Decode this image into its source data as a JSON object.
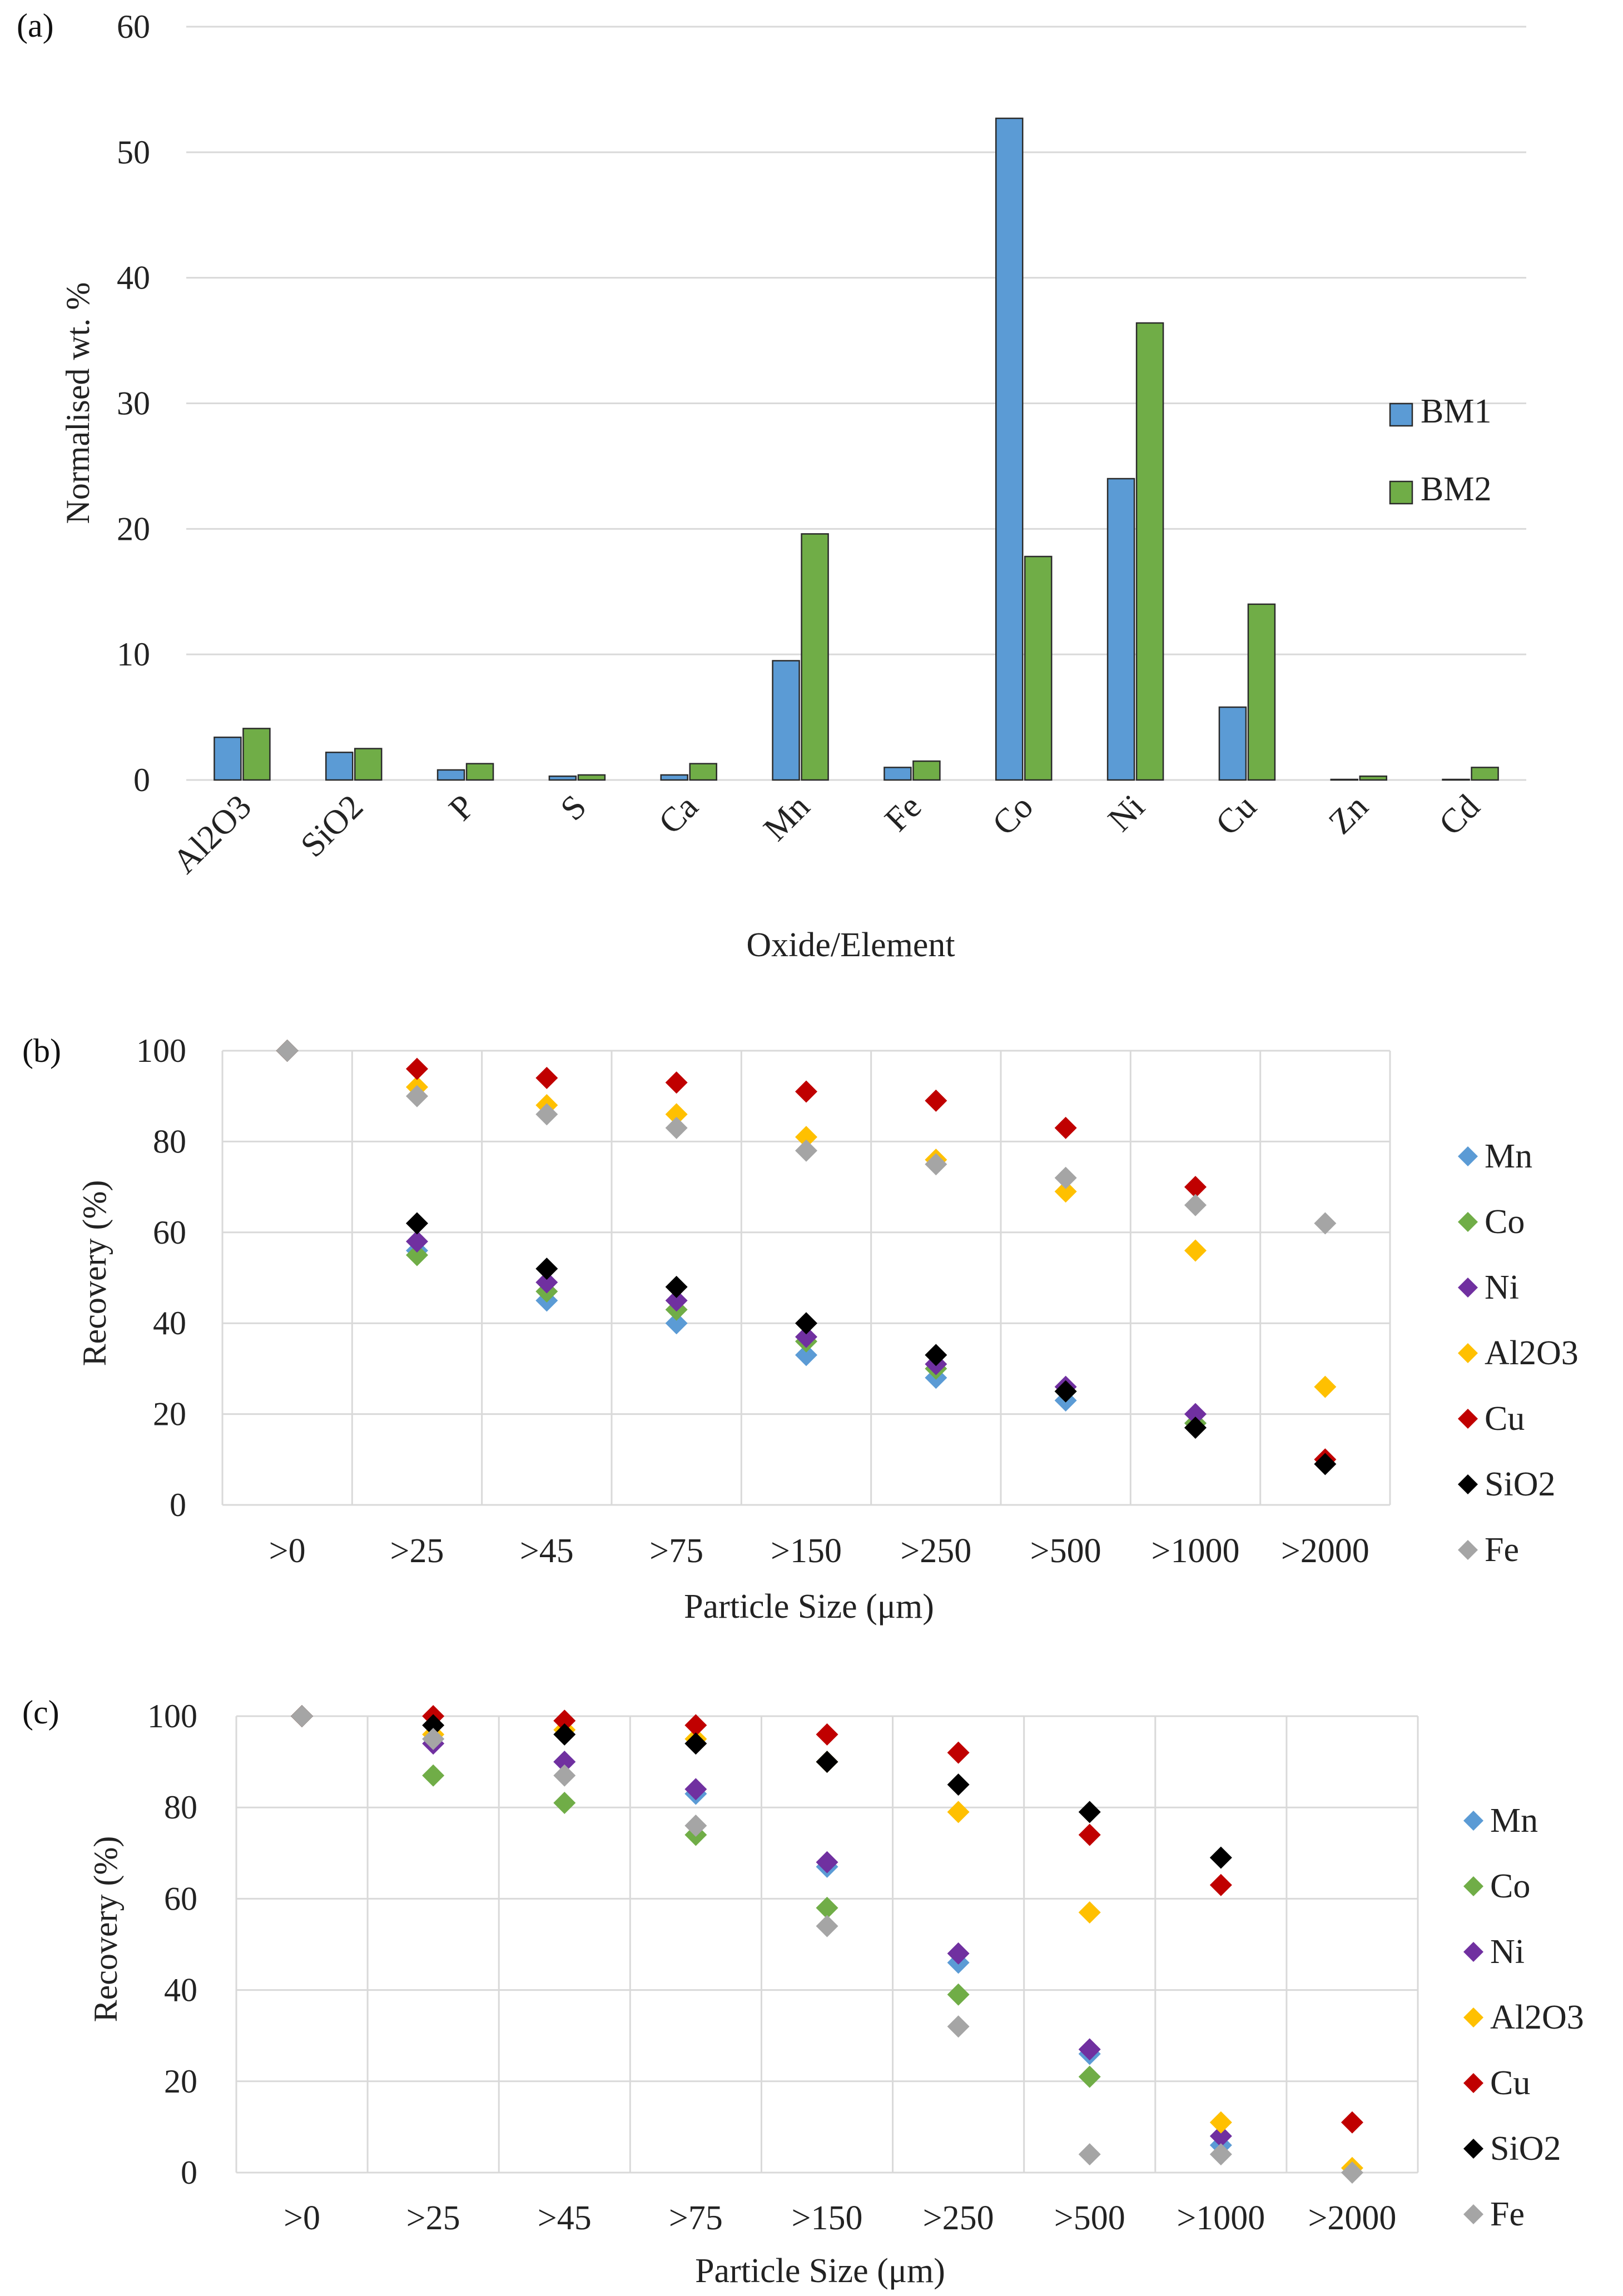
{
  "colors": {
    "BM1": "#5b9bd5",
    "BM2": "#70ad47",
    "Mn": "#5b9bd5",
    "Co": "#70ad47",
    "Ni": "#7030a0",
    "Al2O3": "#ffc000",
    "Cu": "#c00000",
    "SiO2": "#000000",
    "Fe": "#a5a5a5",
    "grid": "#d9d9d9"
  },
  "chart_data": [
    {
      "panel": "(a)",
      "type": "bar",
      "categories": [
        "Al2O3",
        "SiO2",
        "P",
        "S",
        "Ca",
        "Mn",
        "Fe",
        "Co",
        "Ni",
        "Cu",
        "Zn",
        "Cd"
      ],
      "series": [
        {
          "name": "BM1",
          "values": [
            3.4,
            2.2,
            0.8,
            0.3,
            0.4,
            9.5,
            1.0,
            52.7,
            24.0,
            5.8,
            0.0,
            0.0
          ]
        },
        {
          "name": "BM2",
          "values": [
            4.1,
            2.5,
            1.3,
            0.4,
            1.3,
            19.6,
            1.5,
            17.8,
            36.4,
            14.0,
            0.3,
            1.0
          ]
        }
      ],
      "ylim": [
        0,
        60
      ],
      "yticks": [
        0,
        10,
        20,
        30,
        40,
        50,
        60
      ],
      "xlabel": "Oxide/Element",
      "ylabel": "Normalised wt. %",
      "legend": "right"
    },
    {
      "panel": "(b)",
      "type": "scatter",
      "categories": [
        ">0",
        ">25",
        ">45",
        ">75",
        ">150",
        ">250",
        ">500",
        ">1000",
        ">2000"
      ],
      "series": [
        {
          "name": "Mn",
          "values": [
            100,
            56,
            45,
            40,
            33,
            28,
            23,
            18,
            null
          ]
        },
        {
          "name": "Co",
          "values": [
            100,
            55,
            47,
            43,
            36,
            30,
            25,
            18,
            null
          ]
        },
        {
          "name": "Ni",
          "values": [
            100,
            58,
            49,
            45,
            37,
            31,
            26,
            20,
            null
          ]
        },
        {
          "name": "Al2O3",
          "values": [
            100,
            92,
            88,
            86,
            81,
            76,
            69,
            56,
            26
          ]
        },
        {
          "name": "Cu",
          "values": [
            100,
            96,
            94,
            93,
            91,
            89,
            83,
            70,
            10
          ]
        },
        {
          "name": "SiO2",
          "values": [
            100,
            62,
            52,
            48,
            40,
            33,
            25,
            17,
            9
          ]
        },
        {
          "name": "Fe",
          "values": [
            100,
            90,
            86,
            83,
            78,
            75,
            72,
            66,
            62
          ]
        }
      ],
      "ylim": [
        0,
        100
      ],
      "yticks": [
        0,
        20,
        40,
        60,
        80,
        100
      ],
      "xlabel": "Particle Size (μm)",
      "ylabel": "Recovery (%)",
      "legend": "right"
    },
    {
      "panel": "(c)",
      "type": "scatter",
      "categories": [
        ">0",
        ">25",
        ">45",
        ">75",
        ">150",
        ">250",
        ">500",
        ">1000",
        ">2000"
      ],
      "series": [
        {
          "name": "Mn",
          "values": [
            100,
            95,
            90,
            83,
            67,
            46,
            26,
            6,
            null
          ]
        },
        {
          "name": "Co",
          "values": [
            100,
            87,
            81,
            74,
            58,
            39,
            21,
            null,
            null
          ]
        },
        {
          "name": "Ni",
          "values": [
            100,
            94,
            90,
            84,
            68,
            48,
            27,
            8,
            null
          ]
        },
        {
          "name": "Al2O3",
          "values": [
            100,
            96,
            97,
            95,
            90,
            79,
            57,
            11,
            1
          ]
        },
        {
          "name": "Cu",
          "values": [
            100,
            100,
            99,
            98,
            96,
            92,
            74,
            63,
            11
          ]
        },
        {
          "name": "SiO2",
          "values": [
            100,
            98,
            96,
            94,
            90,
            85,
            79,
            69,
            null
          ]
        },
        {
          "name": "Fe",
          "values": [
            100,
            95,
            87,
            76,
            54,
            32,
            4,
            4,
            0
          ]
        }
      ],
      "ylim": [
        0,
        100
      ],
      "yticks": [
        0,
        20,
        40,
        60,
        80,
        100
      ],
      "xlabel": "Particle Size (μm)",
      "ylabel": "Recovery (%)",
      "legend": "right"
    }
  ]
}
